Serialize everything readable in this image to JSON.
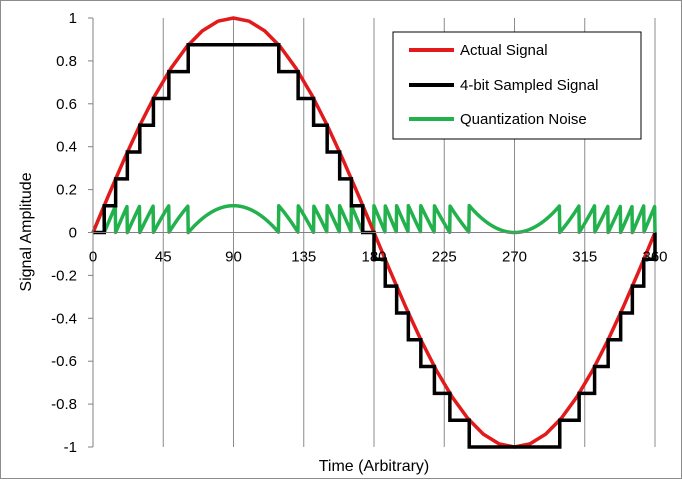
{
  "chart_data": {
    "type": "line",
    "title": "",
    "xlabel": "Time (Arbitrary)",
    "ylabel": "Signal Amplitude",
    "xlim": [
      0,
      360
    ],
    "ylim": [
      -1,
      1
    ],
    "x_ticks": [
      0,
      45,
      90,
      135,
      180,
      225,
      270,
      315,
      360
    ],
    "y_ticks": [
      -1,
      -0.8,
      -0.6,
      -0.4,
      -0.2,
      0,
      0.2,
      0.4,
      0.6,
      0.8,
      1
    ],
    "x_tick_labels": [
      "0",
      "45",
      "90",
      "135",
      "180",
      "225",
      "270",
      "315",
      "360"
    ],
    "y_tick_labels": [
      "-1",
      "-0.8",
      "-0.6",
      "-0.4",
      "-0.2",
      "0",
      "0.2",
      "0.4",
      "0.6",
      "0.8",
      "1"
    ],
    "grid": "vertical",
    "legend_position": "top-right",
    "series": [
      {
        "name": "Actual Signal",
        "color": "#e31a1c",
        "x": [
          0,
          10,
          20,
          30,
          40,
          50,
          60,
          70,
          80,
          90,
          100,
          110,
          120,
          130,
          140,
          150,
          160,
          170,
          180,
          190,
          200,
          210,
          220,
          230,
          240,
          250,
          260,
          270,
          280,
          290,
          300,
          310,
          320,
          330,
          340,
          350,
          360
        ],
        "y": [
          0,
          0.174,
          0.342,
          0.5,
          0.643,
          0.766,
          0.866,
          0.94,
          0.985,
          1,
          0.985,
          0.94,
          0.866,
          0.766,
          0.643,
          0.5,
          0.342,
          0.174,
          0,
          -0.174,
          -0.342,
          -0.5,
          -0.643,
          -0.766,
          -0.866,
          -0.94,
          -0.985,
          -1,
          -0.985,
          -0.94,
          -0.866,
          -0.766,
          -0.643,
          -0.5,
          -0.342,
          -0.174,
          0
        ]
      },
      {
        "name": "4-bit Sampled Signal",
        "color": "#000000",
        "step": 0.125,
        "x": [
          0,
          7.2,
          14.5,
          22,
          30,
          38.7,
          48.6,
          61,
          119,
          131.4,
          141.3,
          150,
          158,
          165.5,
          172.8,
          180,
          187.2,
          194.5,
          202,
          210,
          218.7,
          228.6,
          241,
          299,
          311.4,
          321.3,
          330,
          338,
          345.5,
          352.8,
          360
        ],
        "y": [
          0,
          0.125,
          0.25,
          0.375,
          0.5,
          0.625,
          0.75,
          0.875,
          0.75,
          0.625,
          0.5,
          0.375,
          0.25,
          0.125,
          0,
          -0.125,
          -0.25,
          -0.375,
          -0.5,
          -0.625,
          -0.75,
          -0.875,
          -1,
          -0.875,
          -0.75,
          -0.625,
          -0.5,
          -0.375,
          -0.25,
          -0.125,
          0
        ]
      },
      {
        "name": "Quantization Noise",
        "color": "#22b14c",
        "derived": "Actual Signal minus 4-bit Sampled Signal"
      }
    ]
  }
}
